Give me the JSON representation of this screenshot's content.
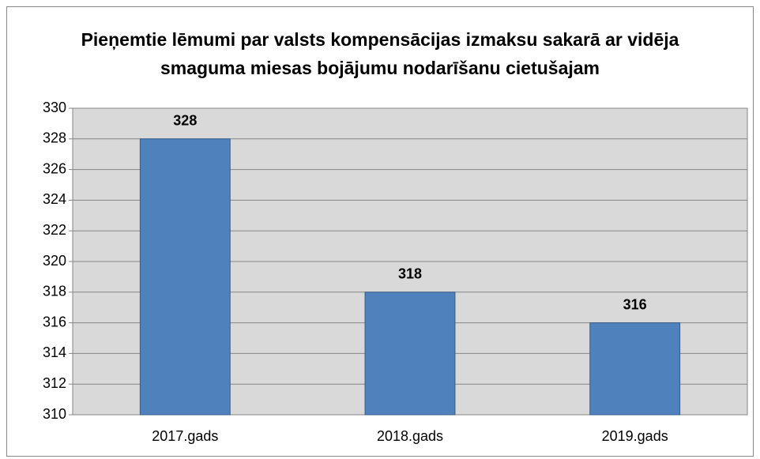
{
  "chart_data": {
    "type": "bar",
    "title": "Pieņemtie lēmumi par valsts kompensācijas izmaksu sakarā ar vidēja smaguma miesas bojājumu nodarīšanu cietušajam",
    "categories": [
      "2017.gads",
      "2018.gads",
      "2019.gads"
    ],
    "values": [
      328,
      318,
      316
    ],
    "color": "#4f81bd",
    "ylim": [
      310,
      330
    ],
    "yticks": [
      310,
      312,
      314,
      316,
      318,
      320,
      322,
      324,
      326,
      328,
      330
    ],
    "grid": true
  }
}
